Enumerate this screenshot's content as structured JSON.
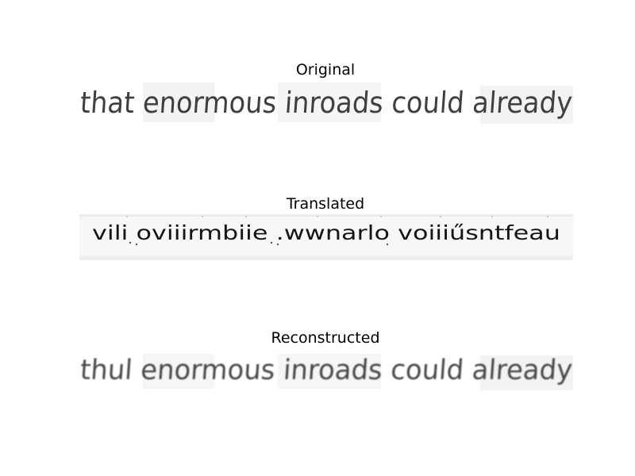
{
  "panels": [
    {
      "title": "Original",
      "text": "that enormous inroads could already"
    },
    {
      "title": "Translated",
      "text": "vili oviiirmbiie .wwnarlo voiiiűsntfeau"
    },
    {
      "title": "Reconstructed",
      "text": "thul enormous inroads could already"
    }
  ],
  "colors": {
    "ink": "#333333",
    "translated_ink": "#111111",
    "background": "#ffffff"
  }
}
